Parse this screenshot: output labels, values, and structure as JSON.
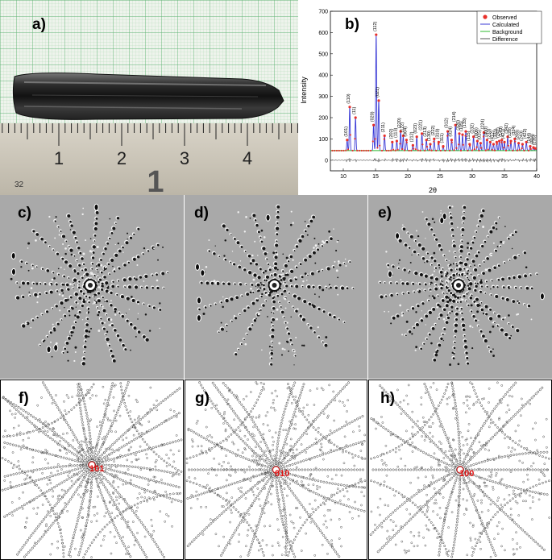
{
  "figure": {
    "panels": [
      {
        "label": "a)",
        "kind": "photo"
      },
      {
        "label": "b)",
        "kind": "xrd-plot"
      },
      {
        "label": "c)",
        "kind": "laue"
      },
      {
        "label": "d)",
        "kind": "laue"
      },
      {
        "label": "e)",
        "kind": "laue"
      },
      {
        "label": "f)",
        "kind": "laue-simulation",
        "center_index": "101"
      },
      {
        "label": "g)",
        "kind": "laue-simulation",
        "center_index": "010"
      },
      {
        "label": "h)",
        "kind": "laue-simulation",
        "center_index": "100"
      }
    ],
    "ruler": {
      "numbers": [
        "1",
        "2",
        "3",
        "4"
      ],
      "big_digit": "1",
      "small_number": "32"
    }
  },
  "chart_data": {
    "type": "line",
    "xlabel": "2θ",
    "ylabel": "Intensity",
    "xlim": [
      8,
      40
    ],
    "ylim": [
      -50,
      700
    ],
    "x_ticks": [
      10,
      15,
      20,
      25,
      30,
      35,
      40
    ],
    "y_ticks": [
      0,
      100,
      200,
      300,
      400,
      500,
      600,
      700
    ],
    "legend": {
      "position": "top-right",
      "entries": [
        "Observed",
        "Calculated",
        "Background",
        "Difference"
      ]
    },
    "colors": {
      "observed": "#e8302a",
      "calculated": "#3a3ad6",
      "background": "#2eb82e",
      "difference": "#555555"
    },
    "background_level": 45,
    "difference_offset": 0,
    "peaks": [
      {
        "x": 10.6,
        "y": 95,
        "label": "(101)"
      },
      {
        "x": 11.0,
        "y": 250,
        "label": "(110)"
      },
      {
        "x": 11.9,
        "y": 200,
        "label": "(11)"
      },
      {
        "x": 14.7,
        "y": 165,
        "label": "(020)"
      },
      {
        "x": 15.1,
        "y": 590,
        "label": "(112)"
      },
      {
        "x": 15.5,
        "y": 280,
        "label": "(021)"
      },
      {
        "x": 16.4,
        "y": 115,
        "label": "(211)"
      },
      {
        "x": 17.6,
        "y": 85,
        "label": "(202)"
      },
      {
        "x": 18.3,
        "y": 90,
        "label": "(113)"
      },
      {
        "x": 18.9,
        "y": 135,
        "label": "(220)"
      },
      {
        "x": 19.3,
        "y": 115,
        "label": "(122)"
      },
      {
        "x": 19.8,
        "y": 95,
        "label": "(004)"
      },
      {
        "x": 20.8,
        "y": 70,
        "label": "(212)"
      },
      {
        "x": 21.4,
        "y": 110,
        "label": "(023)"
      },
      {
        "x": 22.2,
        "y": 125,
        "label": "(221)"
      },
      {
        "x": 22.9,
        "y": 95,
        "label": "(213)"
      },
      {
        "x": 23.5,
        "y": 75,
        "label": "(130)"
      },
      {
        "x": 24.1,
        "y": 100,
        "label": "(222)"
      },
      {
        "x": 24.8,
        "y": 85,
        "label": "(310)"
      },
      {
        "x": 25.5,
        "y": 65,
        "label": "(311)"
      },
      {
        "x": 26.2,
        "y": 135,
        "label": "(312)"
      },
      {
        "x": 26.8,
        "y": 95,
        "label": "(024)"
      },
      {
        "x": 27.4,
        "y": 165,
        "label": "(214)"
      },
      {
        "x": 28.0,
        "y": 125,
        "label": "(320)"
      },
      {
        "x": 28.5,
        "y": 120,
        "label": "(105)"
      },
      {
        "x": 29.0,
        "y": 135,
        "label": "(133)"
      },
      {
        "x": 29.6,
        "y": 75,
        "label": "(115)"
      },
      {
        "x": 30.2,
        "y": 110,
        "label": "(232)"
      },
      {
        "x": 30.8,
        "y": 90,
        "label": "(006)"
      },
      {
        "x": 31.3,
        "y": 80,
        "label": "(025)"
      },
      {
        "x": 31.8,
        "y": 130,
        "label": "(224)"
      },
      {
        "x": 32.3,
        "y": 95,
        "label": "(400)"
      },
      {
        "x": 32.8,
        "y": 85,
        "label": "(233)"
      },
      {
        "x": 33.3,
        "y": 75,
        "label": "(412)"
      },
      {
        "x": 33.8,
        "y": 85,
        "label": "(331)"
      },
      {
        "x": 34.2,
        "y": 90,
        "label": "(241)"
      },
      {
        "x": 34.6,
        "y": 95,
        "label": "(143)"
      },
      {
        "x": 35.0,
        "y": 85,
        "label": "(421)"
      },
      {
        "x": 35.5,
        "y": 110,
        "label": "(342)"
      },
      {
        "x": 36.0,
        "y": 90,
        "label": "(128)"
      },
      {
        "x": 36.6,
        "y": 100,
        "label": "(324)"
      },
      {
        "x": 37.2,
        "y": 80,
        "label": "(208)"
      },
      {
        "x": 37.8,
        "y": 75,
        "label": "(243)"
      },
      {
        "x": 38.4,
        "y": 85,
        "label": "(422)"
      },
      {
        "x": 39.0,
        "y": 65,
        "label": "(144)"
      },
      {
        "x": 39.5,
        "y": 60,
        "label": "(404)"
      },
      {
        "x": 39.8,
        "y": 55,
        "label": "(235)"
      }
    ]
  }
}
